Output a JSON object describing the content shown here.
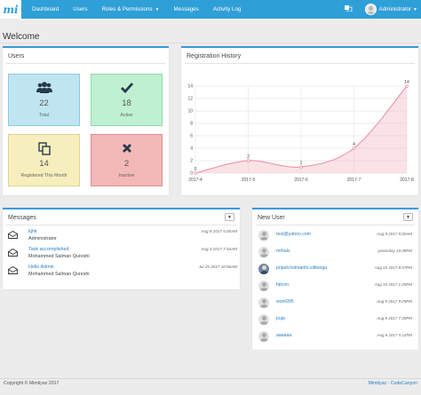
{
  "brand": {
    "logo_text": "mi"
  },
  "nav": {
    "items": [
      {
        "label": "Dashboard"
      },
      {
        "label": "Users"
      },
      {
        "label": "Roles & Permissions"
      },
      {
        "label": "Messages"
      },
      {
        "label": "Activity Log"
      }
    ],
    "user": "Administrator"
  },
  "page": {
    "title": "Welcome"
  },
  "users_panel": {
    "title": "Users",
    "tiles": [
      {
        "value": "22",
        "label": "Total",
        "icon": "users-icon",
        "bg": "#bfe6f0",
        "border": "#8ccbe0"
      },
      {
        "value": "18",
        "label": "Active",
        "icon": "check-icon",
        "bg": "#bff0cf",
        "border": "#8fd8a8"
      },
      {
        "value": "14",
        "label": "Registered This Month",
        "icon": "copy-icon",
        "bg": "#f6efbd",
        "border": "#e0d48a"
      },
      {
        "value": "2",
        "label": "Inactive",
        "icon": "times-icon",
        "bg": "#f3b9b9",
        "border": "#dd8d8d"
      }
    ]
  },
  "registration": {
    "title": "Registration History"
  },
  "chart_data": {
    "type": "area",
    "title": "",
    "categories": [
      "2017-4",
      "2017-5",
      "2017-6",
      "2017-7",
      "2017-8"
    ],
    "values": [
      0,
      2,
      1,
      4,
      14
    ],
    "data_labels": [
      "0",
      "2",
      "1",
      "4",
      "14"
    ],
    "yticks": [
      "0",
      "2",
      "4",
      "6",
      "8",
      "10",
      "12",
      "14"
    ],
    "ylim": [
      0,
      14
    ],
    "grid": true,
    "color": "#ef8aa0"
  },
  "messages": {
    "title": "Messages",
    "items": [
      {
        "title": "kjhk",
        "from": "Administrator",
        "date": "Aug 8 2017 5:00AM"
      },
      {
        "title": "Task accomplished",
        "from": "Mohammed Salman Qureshi",
        "date": "Aug 3 2017 7:44AM"
      },
      {
        "title": "Hello Admin",
        "from": "Mohammed Salman Qureshi",
        "date": "Jul 25 2017 10:56AM"
      }
    ]
  },
  "new_users": {
    "title": "New User",
    "items": [
      {
        "name": "test@yahoo.com",
        "date": "Aug 8 2017 5:00AM",
        "photo": false
      },
      {
        "name": "mrhals",
        "date": "yesterday 10:39PM",
        "photo": false
      },
      {
        "name": "prijadi.hstmarito.silitonga",
        "date": "Aug 15 2017 8:57PM",
        "photo": true
      },
      {
        "name": "falcon",
        "date": "Aug 15 2017 1:25PM",
        "photo": false
      },
      {
        "name": "work995",
        "date": "Aug 9 2017 9:29PM",
        "photo": false
      },
      {
        "name": "puja",
        "date": "Aug 8 2017 7:45PM",
        "photo": false
      },
      {
        "name": "aaaaaa",
        "date": "Aug 6 2017 5:11PM",
        "photo": false
      }
    ]
  },
  "footer": {
    "copyright": "Copyright © Mimtiyaz 2017",
    "credit": "Mimtiyaz - CodeCanyon"
  }
}
